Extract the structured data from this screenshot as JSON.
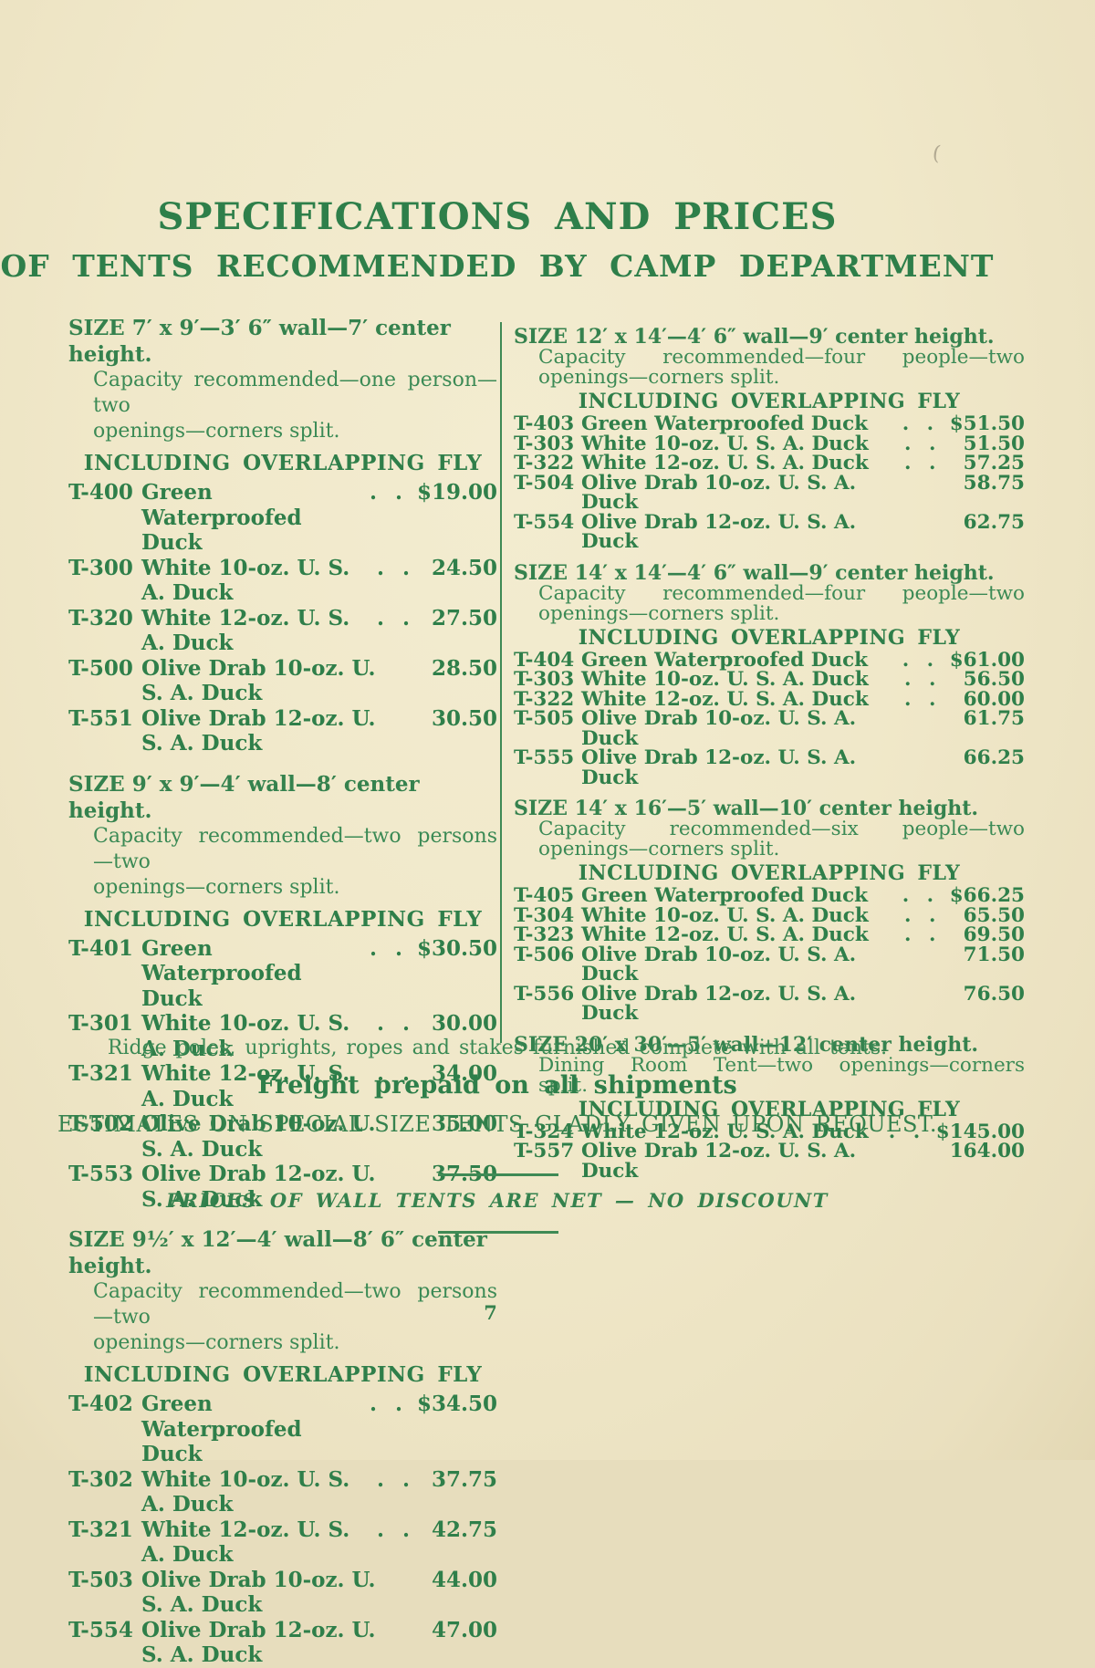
{
  "page": {
    "title": "SPECIFICATIONS AND PRICES",
    "subtitle": "OF TENTS RECOMMENDED BY CAMP DEPARTMENT",
    "page_number": "7",
    "artifact_mark": "(",
    "colors": {
      "paper": "#f0e8c9",
      "ink": "#388752",
      "heading_ink": "#2e7f4a"
    }
  },
  "columns": [
    {
      "side": "left",
      "sections": [
        {
          "size_line": "SIZE 7′ x 9′—3′ 6″ wall—7′ center height.",
          "capacity_lines": [
            "Capacity recommended—one person—two",
            "openings—corners split."
          ],
          "heading": "INCLUDING OVERLAPPING FLY",
          "rows": [
            {
              "model": "T-400",
              "desc": "Green Waterproofed Duck",
              "leaders": ". .",
              "price": "$19.00"
            },
            {
              "model": "T-300",
              "desc": "White 10-oz. U. S. A. Duck",
              "leaders": ". .",
              "price": "24.50"
            },
            {
              "model": "T-320",
              "desc": "White 12-oz. U. S. A. Duck",
              "leaders": ". .",
              "price": "27.50"
            },
            {
              "model": "T-500",
              "desc": "Olive Drab 10-oz. U. S. A. Duck",
              "leaders": "",
              "price": "28.50"
            },
            {
              "model": "T-551",
              "desc": "Olive Drab 12-oz. U. S. A. Duck",
              "leaders": "",
              "price": "30.50"
            }
          ]
        },
        {
          "size_line": "SIZE 9′ x 9′—4′ wall—8′ center height.",
          "capacity_lines": [
            "Capacity recommended—two persons—two",
            "openings—corners split."
          ],
          "heading": "INCLUDING OVERLAPPING FLY",
          "rows": [
            {
              "model": "T-401",
              "desc": "Green Waterproofed Duck",
              "leaders": ". .",
              "price": "$30.50"
            },
            {
              "model": "T-301",
              "desc": "White 10-oz. U. S. A. Duck",
              "leaders": ". .",
              "price": "30.00"
            },
            {
              "model": "T-321",
              "desc": "White 12-oz. U. S. A. Duck",
              "leaders": ". .",
              "price": "34.00"
            },
            {
              "model": "T-502",
              "desc": "Olive Drab 10-oz. U. S. A. Duck",
              "leaders": "",
              "price": "35.00"
            },
            {
              "model": "T-553",
              "desc": "Olive Drab 12-oz. U. S. A. Duck",
              "leaders": "",
              "price": "37.50"
            }
          ]
        },
        {
          "size_line": "SIZE 9½′ x 12′—4′ wall—8′ 6″ center height.",
          "capacity_lines": [
            "Capacity recommended—two persons—two",
            "openings—corners split."
          ],
          "heading": "INCLUDING OVERLAPPING FLY",
          "rows": [
            {
              "model": "T-402",
              "desc": "Green Waterproofed Duck",
              "leaders": ". .",
              "price": "$34.50"
            },
            {
              "model": "T-302",
              "desc": "White 10-oz. U. S. A. Duck",
              "leaders": ". .",
              "price": "37.75"
            },
            {
              "model": "T-321",
              "desc": "White 12-oz. U. S. A. Duck",
              "leaders": ". .",
              "price": "42.75"
            },
            {
              "model": "T-503",
              "desc": "Olive Drab 10-oz. U. S. A. Duck",
              "leaders": "",
              "price": "44.00"
            },
            {
              "model": "T-554",
              "desc": "Olive Drab 12-oz. U. S. A. Duck",
              "leaders": "",
              "price": "47.00"
            }
          ]
        }
      ]
    },
    {
      "side": "right",
      "sections": [
        {
          "size_line": "SIZE 12′ x 14′—4′ 6″ wall—9′ center height.",
          "capacity_lines": [
            "Capacity recommended—four people—two",
            "openings—corners split."
          ],
          "heading": "INCLUDING OVERLAPPING FLY",
          "rows": [
            {
              "model": "T-403",
              "desc": "Green Waterproofed Duck",
              "leaders": ". .",
              "price": "$51.50"
            },
            {
              "model": "T-303",
              "desc": "White 10-oz. U. S. A. Duck",
              "leaders": ". .",
              "price": "51.50"
            },
            {
              "model": "T-322",
              "desc": "White 12-oz. U. S. A. Duck",
              "leaders": ". .",
              "price": "57.25"
            },
            {
              "model": "T-504",
              "desc": "Olive Drab 10-oz. U. S. A. Duck",
              "leaders": "",
              "price": "58.75"
            },
            {
              "model": "T-554",
              "desc": "Olive Drab 12-oz. U. S. A. Duck",
              "leaders": "",
              "price": "62.75"
            }
          ]
        },
        {
          "size_line": "SIZE 14′ x 14′—4′ 6″ wall—9′ center height.",
          "capacity_lines": [
            "Capacity recommended—four people—two",
            "openings—corners split."
          ],
          "heading": "INCLUDING OVERLAPPING FLY",
          "rows": [
            {
              "model": "T-404",
              "desc": "Green Waterproofed Duck",
              "leaders": ". .",
              "price": "$61.00"
            },
            {
              "model": "T-303",
              "desc": "White 10-oz. U. S. A. Duck",
              "leaders": ". .",
              "price": "56.50"
            },
            {
              "model": "T-322",
              "desc": "White 12-oz. U. S. A. Duck",
              "leaders": ". .",
              "price": "60.00"
            },
            {
              "model": "T-505",
              "desc": "Olive Drab 10-oz. U. S. A. Duck",
              "leaders": "",
              "price": "61.75"
            },
            {
              "model": "T-555",
              "desc": "Olive Drab 12-oz. U. S. A. Duck",
              "leaders": "",
              "price": "66.25"
            }
          ]
        },
        {
          "size_line": "SIZE 14′ x 16′—5′ wall—10′ center height.",
          "capacity_lines": [
            "Capacity recommended—six people—two",
            "openings—corners split."
          ],
          "heading": "INCLUDING OVERLAPPING FLY",
          "rows": [
            {
              "model": "T-405",
              "desc": "Green Waterproofed Duck",
              "leaders": ". .",
              "price": "$66.25"
            },
            {
              "model": "T-304",
              "desc": "White 10-oz. U. S. A. Duck",
              "leaders": ". .",
              "price": "65.50"
            },
            {
              "model": "T-323",
              "desc": "White 12-oz. U. S. A. Duck",
              "leaders": ". .",
              "price": "69.50"
            },
            {
              "model": "T-506",
              "desc": "Olive Drab 10-oz. U. S. A. Duck",
              "leaders": "",
              "price": "71.50"
            },
            {
              "model": "T-556",
              "desc": "Olive Drab 12-oz. U. S. A. Duck",
              "leaders": "",
              "price": "76.50"
            }
          ]
        },
        {
          "size_line": "SIZE 20′ x 30′—5′ wall—12′ center height.",
          "capacity_lines": [
            "Dining Room Tent—two openings—corners",
            "split."
          ],
          "heading": "INCLUDING OVERLAPPING FLY",
          "rows": [
            {
              "model": "T-324",
              "desc": "White 12-oz. U. S. A. Duck",
              "leaders": ". .",
              "price": "$145.00"
            },
            {
              "model": "T-557",
              "desc": "Olive Drab 12-oz. U. S. A. Duck",
              "leaders": "",
              "price": "164.00"
            }
          ]
        }
      ]
    }
  ],
  "footer": {
    "ridge_note": "Ridge poles, uprights, ropes and stakes furnished complete with all tents.",
    "freight_line": "Freight prepaid on all shipments",
    "estimates_line": "ESTIMATES ON SPECIAL SIZE TENTS GLADLY GIVEN UPON REQUEST.",
    "net_line": "PRICES OF WALL TENTS ARE NET — NO DISCOUNT"
  }
}
